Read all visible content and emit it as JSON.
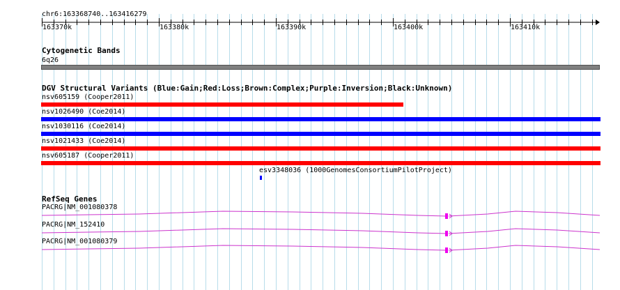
{
  "ruler": {
    "range_label": "chr6:163368740..163416279",
    "ticks": [
      "163370k",
      "163380k",
      "163390k",
      "163400k",
      "163410k"
    ]
  },
  "cytoband": {
    "title": "Cytogenetic Bands",
    "band": "6q26",
    "color": "#808080"
  },
  "dgv": {
    "title": "DGV Structural Variants (Blue:Gain;Red:Loss;Brown:Complex;Purple:Inversion;Black:Unknown)",
    "variants": [
      {
        "label": "nsv605159 (Cooper2011)",
        "color": "#ff0000"
      },
      {
        "label": "nsv1026490 (Coe2014)",
        "color": "#0000ff"
      },
      {
        "label": "nsv1030116 (Coe2014)",
        "color": "#0000ff"
      },
      {
        "label": "nsv1021433 (Coe2014)",
        "color": "#ff0000"
      },
      {
        "label": "nsv605187 (Cooper2011)",
        "color": "#ff0000"
      },
      {
        "label": "esv3348036 (1000GenomesConsortiumPilotProject)",
        "color": "#0000ff"
      }
    ]
  },
  "refseq": {
    "title": "RefSeq Genes",
    "genes": [
      {
        "label": "PACRG|NM_001080378"
      },
      {
        "label": "PACRG|NM_152410"
      },
      {
        "label": "PACRG|NM_001080379"
      }
    ],
    "line_color": "#cc33cc",
    "exon_color": "#ee00ee"
  }
}
